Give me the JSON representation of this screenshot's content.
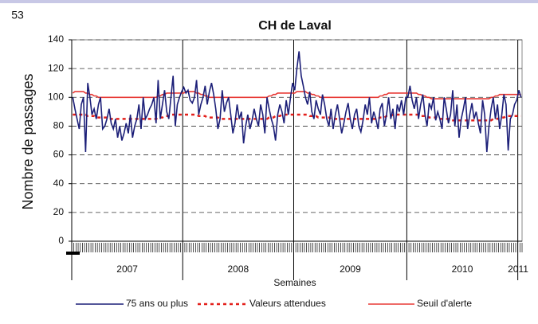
{
  "page_number": "53",
  "chart_data": {
    "type": "line",
    "title": "CH de Laval",
    "ylabel": "Nombre de passages",
    "xlabel": "Semaines",
    "groups": [
      {
        "label": "2007",
        "weeks": 52
      },
      {
        "label": "2008",
        "weeks": 52
      },
      {
        "label": "2009",
        "weeks": 53
      },
      {
        "label": "2010",
        "weeks": 52
      },
      {
        "label": "2011",
        "weeks": 2
      }
    ],
    "ylim": [
      0,
      140
    ],
    "yticks": [
      0,
      20,
      40,
      60,
      80,
      100,
      120,
      140
    ],
    "grid": true,
    "legend": "bottom",
    "series": [
      {
        "name": "75 ans ou plus",
        "color": "#1c1f78",
        "dash": false,
        "values": [
          100,
          92,
          85,
          78,
          95,
          100,
          62,
          110,
          100,
          88,
          92,
          85,
          95,
          100,
          78,
          80,
          85,
          92,
          82,
          78,
          85,
          72,
          80,
          70,
          75,
          82,
          75,
          88,
          72,
          80,
          85,
          95,
          78,
          100,
          85,
          88,
          92,
          95,
          100,
          82,
          112,
          85,
          95,
          105,
          90,
          85,
          100,
          115,
          80,
          95,
          100,
          104,
          107,
          103,
          105,
          98,
          96,
          100,
          112,
          88,
          95,
          100,
          108,
          95,
          104,
          110,
          102,
          92,
          78,
          85,
          105,
          90,
          96,
          100,
          88,
          75,
          82,
          95,
          85,
          90,
          68,
          80,
          88,
          78,
          84,
          92,
          85,
          80,
          95,
          88,
          75,
          100,
          92,
          85,
          80,
          70,
          88,
          95,
          90,
          82,
          98,
          88,
          100,
          110,
          105,
          120,
          132,
          115,
          108,
          100,
          95,
          104,
          90,
          85,
          98,
          92,
          88,
          102,
          95,
          85,
          80,
          92,
          78,
          88,
          95,
          85,
          75,
          82,
          90,
          96,
          85,
          78,
          88,
          92,
          80,
          76,
          84,
          95,
          88,
          100,
          82,
          90,
          85,
          78,
          92,
          96,
          80,
          88,
          100,
          85,
          92,
          78,
          95,
          90,
          98,
          88,
          100,
          100,
          108,
          98,
          92,
          100,
          85,
          95,
          102,
          88,
          80,
          96,
          92,
          100,
          84,
          90,
          85,
          78,
          100,
          92,
          82,
          88,
          105,
          80,
          95,
          72,
          85,
          92,
          100,
          78,
          88,
          96,
          85,
          90,
          82,
          75,
          98,
          88,
          62,
          80,
          92,
          100,
          85,
          95,
          78,
          88,
          102,
          95,
          63,
          85,
          88,
          95,
          98,
          105,
          100
        ]
      },
      {
        "name": "Valeurs attendues",
        "color": "#e3201b",
        "dash": true,
        "values": [
          88,
          88,
          88,
          88,
          88,
          88,
          88,
          87,
          87,
          87,
          87,
          86,
          86,
          86,
          86,
          86,
          86,
          85,
          85,
          85,
          85,
          85,
          85,
          85,
          85,
          85,
          85,
          85,
          85,
          85,
          85,
          85,
          85,
          85,
          85,
          85,
          85,
          85,
          85,
          85,
          86,
          86,
          86,
          87,
          87,
          87,
          88,
          88,
          88,
          88,
          88,
          88,
          88,
          88,
          88,
          88,
          88,
          88,
          88,
          87,
          87,
          87,
          87,
          86,
          86,
          86,
          86,
          86,
          86,
          85,
          85,
          85,
          85,
          85,
          85,
          85,
          85,
          85,
          85,
          85,
          85,
          85,
          85,
          85,
          85,
          85,
          85,
          85,
          85,
          85,
          85,
          85,
          86,
          86,
          86,
          87,
          87,
          87,
          88,
          88,
          88,
          88,
          88,
          88,
          88,
          88,
          88,
          88,
          88,
          88,
          88,
          87,
          87,
          87,
          87,
          86,
          86,
          86,
          86,
          86,
          86,
          85,
          85,
          85,
          85,
          85,
          85,
          85,
          85,
          85,
          85,
          85,
          85,
          85,
          85,
          85,
          85,
          85,
          85,
          85,
          85,
          85,
          85,
          85,
          86,
          86,
          86,
          87,
          87,
          87,
          88,
          88,
          88,
          88,
          88,
          88,
          88,
          88,
          88,
          88,
          88,
          88,
          88,
          87,
          87,
          87,
          87,
          86,
          86,
          86,
          86,
          85,
          85,
          85,
          85,
          85,
          85,
          84,
          84,
          84,
          84,
          84,
          84,
          84,
          84,
          84,
          84,
          84,
          84,
          84,
          84,
          84,
          84,
          84,
          84,
          84,
          84,
          85,
          85,
          85,
          86,
          86,
          86,
          87,
          87,
          87,
          87,
          87,
          87,
          87,
          87
        ]
      },
      {
        "name": "Seuil d'alerte",
        "color": "#e83a36",
        "dash": false,
        "values": [
          103,
          104,
          104,
          104,
          104,
          104,
          103,
          103,
          102,
          102,
          101,
          101,
          100,
          100,
          100,
          100,
          100,
          100,
          100,
          100,
          100,
          100,
          100,
          100,
          100,
          100,
          100,
          100,
          100,
          100,
          100,
          100,
          100,
          100,
          100,
          100,
          100,
          100,
          100,
          100,
          101,
          101,
          102,
          102,
          103,
          103,
          103,
          103,
          103,
          103,
          103,
          103,
          103,
          104,
          104,
          104,
          104,
          104,
          103,
          103,
          102,
          102,
          101,
          101,
          100,
          100,
          100,
          100,
          100,
          100,
          100,
          100,
          100,
          100,
          100,
          100,
          100,
          100,
          100,
          100,
          100,
          100,
          100,
          100,
          100,
          100,
          100,
          100,
          100,
          100,
          100,
          100,
          101,
          101,
          102,
          102,
          103,
          103,
          103,
          103,
          103,
          103,
          103,
          103,
          103,
          104,
          104,
          104,
          104,
          104,
          103,
          103,
          102,
          102,
          101,
          101,
          100,
          100,
          100,
          100,
          100,
          100,
          100,
          100,
          100,
          100,
          100,
          100,
          100,
          100,
          100,
          100,
          100,
          100,
          100,
          100,
          100,
          100,
          100,
          100,
          100,
          100,
          100,
          100,
          101,
          101,
          102,
          102,
          103,
          103,
          103,
          103,
          103,
          103,
          103,
          103,
          103,
          103,
          103,
          103,
          103,
          103,
          102,
          102,
          101,
          101,
          100,
          100,
          99,
          99,
          99,
          99,
          99,
          99,
          99,
          99,
          99,
          99,
          99,
          99,
          99,
          99,
          99,
          99,
          99,
          99,
          99,
          99,
          99,
          99,
          99,
          99,
          99,
          99,
          99,
          99,
          100,
          100,
          101,
          101,
          102,
          102,
          102,
          102,
          102,
          102,
          102,
          102,
          102,
          102,
          102
        ]
      }
    ]
  }
}
